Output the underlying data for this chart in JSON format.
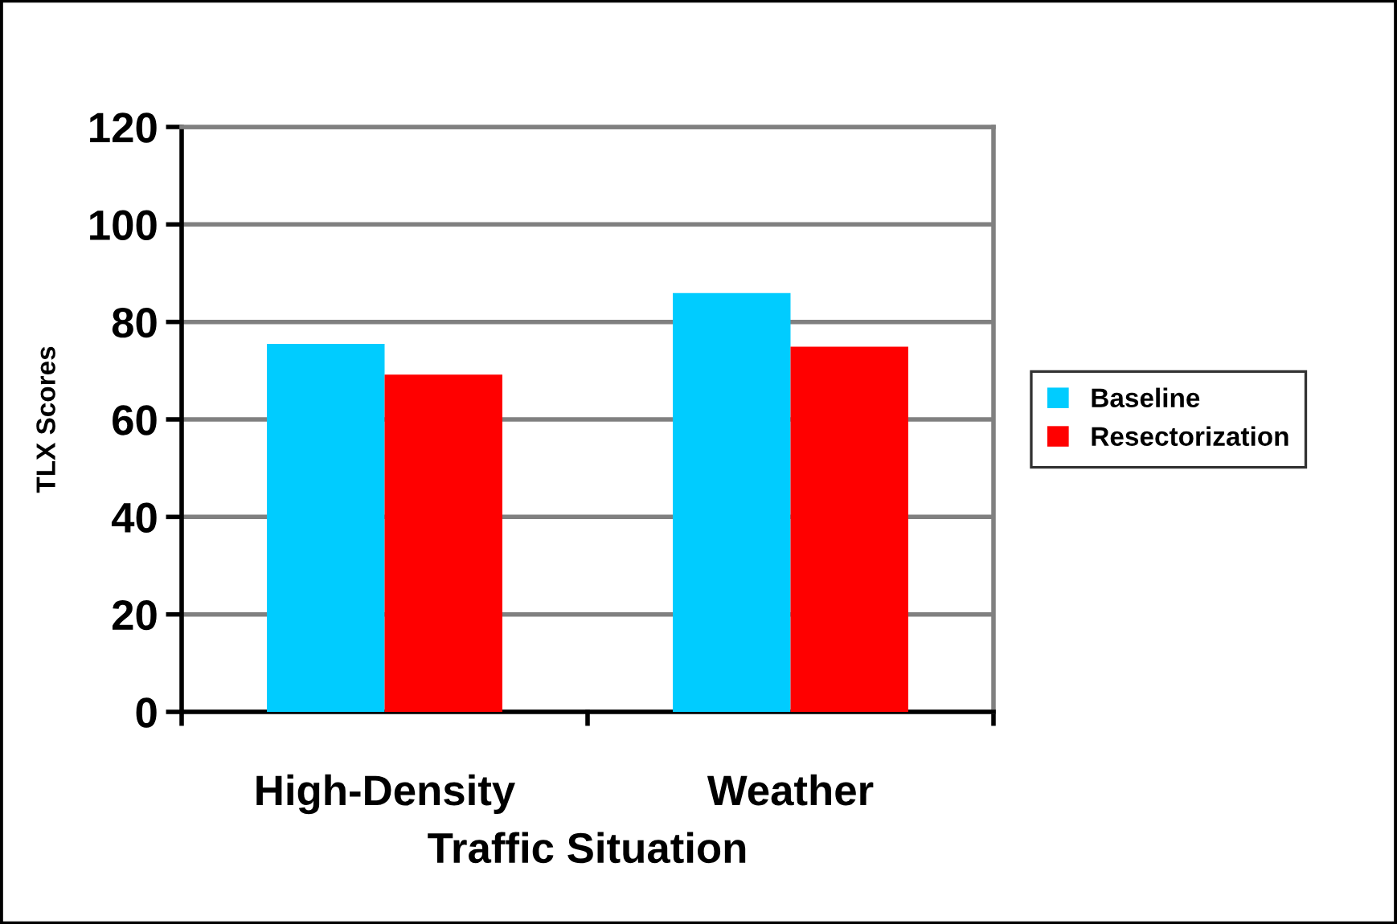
{
  "chart_data": {
    "type": "bar",
    "xlabel": "Traffic Situation",
    "ylabel": "TLX Scores",
    "categories": [
      "High-Density",
      "Weather"
    ],
    "series": [
      {
        "name": "Baseline",
        "color": "#00ccff",
        "values": [
          75.5,
          85.9
        ]
      },
      {
        "name": "Resectorization",
        "color": "#ff0000",
        "values": [
          69.2,
          74.9
        ]
      }
    ],
    "ylim": [
      0,
      120
    ],
    "yticks": [
      0,
      20,
      40,
      60,
      80,
      100,
      120
    ],
    "grid": "y",
    "legend": "right"
  }
}
